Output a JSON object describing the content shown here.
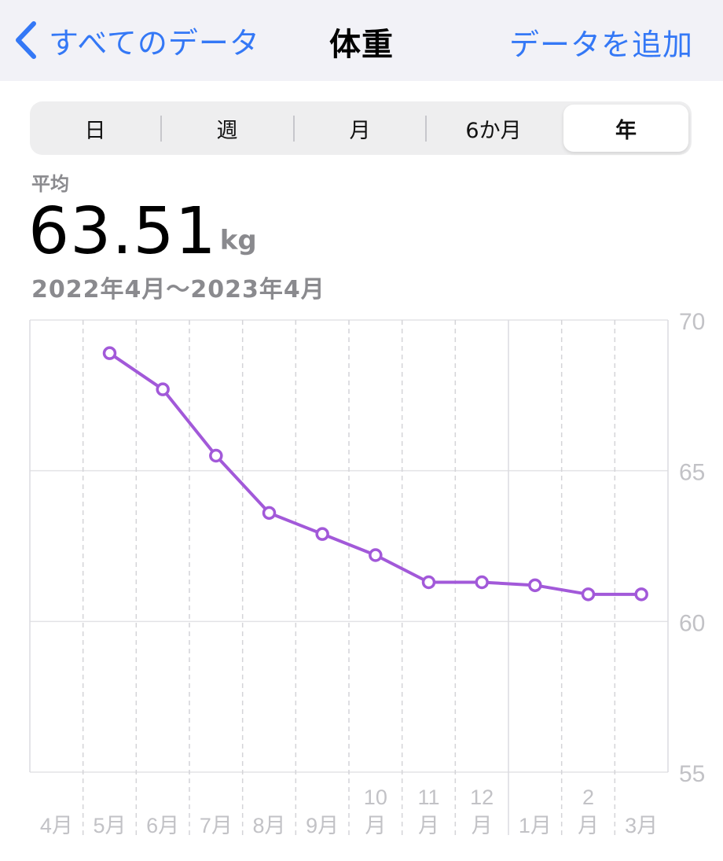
{
  "nav": {
    "back_label": "すべてのデータ",
    "title": "体重",
    "add_label": "データを追加"
  },
  "segments": [
    {
      "label": "日",
      "selected": false
    },
    {
      "label": "週",
      "selected": false
    },
    {
      "label": "月",
      "selected": false
    },
    {
      "label": "6か月",
      "selected": false
    },
    {
      "label": "年",
      "selected": true
    }
  ],
  "summary": {
    "avg_label": "平均",
    "avg_value": "63.51",
    "avg_unit": "kg",
    "range": "2022年4月〜2023年4月"
  },
  "colors": {
    "accent": "#3478f6",
    "series": "#a259d9"
  },
  "chart_data": {
    "type": "line",
    "categories": [
      "4月",
      "5月",
      "6月",
      "7月",
      "8月",
      "9月",
      "10月",
      "11月",
      "12月",
      "1月",
      "2月",
      "3月"
    ],
    "category_lines": [
      [
        "4月"
      ],
      [
        "5月"
      ],
      [
        "6月"
      ],
      [
        "7月"
      ],
      [
        "8月"
      ],
      [
        "9月"
      ],
      [
        "10",
        "月"
      ],
      [
        "11",
        "月"
      ],
      [
        "12",
        "月"
      ],
      [
        "1月"
      ],
      [
        "2",
        "月"
      ],
      [
        "3月"
      ]
    ],
    "values": [
      null,
      68.9,
      67.7,
      65.5,
      63.6,
      62.9,
      62.2,
      61.3,
      61.3,
      61.2,
      60.9,
      60.9
    ],
    "yticks": [
      70,
      65,
      60,
      55
    ],
    "ylim": [
      55,
      70
    ],
    "grid": true,
    "legend": "none"
  }
}
